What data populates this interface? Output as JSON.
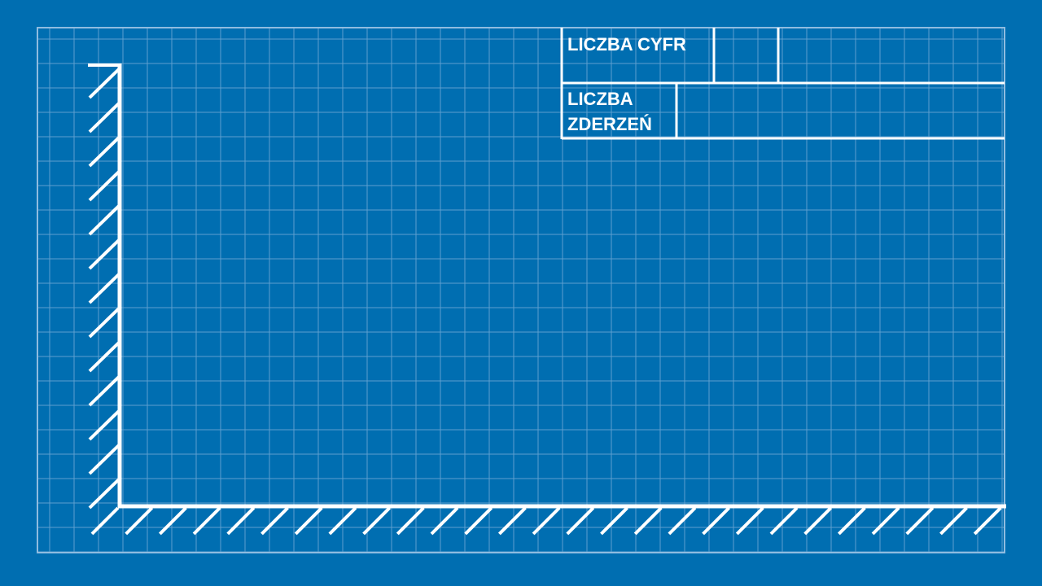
{
  "colors": {
    "background": "#006EB1",
    "grid": "#5E9FD0",
    "border": "#8FBCE0",
    "lines": "#FFFFFF"
  },
  "table": {
    "row1_label": "LICZBA CYFR",
    "row2_label_line1": "LICZBA",
    "row2_label_line2": "ZDERZEŃ"
  }
}
